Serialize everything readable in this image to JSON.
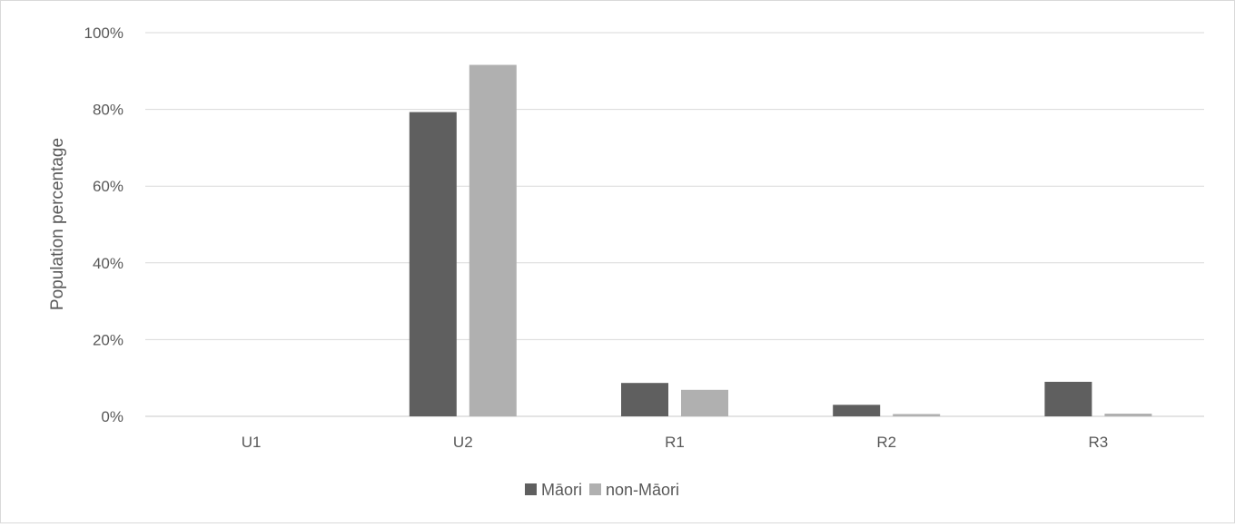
{
  "chart_data": {
    "type": "bar",
    "title": "",
    "xlabel": "",
    "ylabel": "Population percentage",
    "ylim": [
      0,
      100
    ],
    "y_ticks": [
      "0%",
      "20%",
      "40%",
      "60%",
      "80%",
      "100%"
    ],
    "y_tick_values": [
      0,
      20,
      40,
      60,
      80,
      100
    ],
    "categories": [
      "U1",
      "U2",
      "R1",
      "R2",
      "R3"
    ],
    "series": [
      {
        "name": "Māori",
        "color": "#5f5f5f",
        "values": [
          0,
          79.3,
          8.7,
          3.0,
          9.0
        ]
      },
      {
        "name": "non-Māori",
        "color": "#b0b0b0",
        "values": [
          0,
          91.6,
          6.9,
          0.6,
          0.7
        ]
      }
    ],
    "grid": true,
    "legend_position": "bottom"
  }
}
